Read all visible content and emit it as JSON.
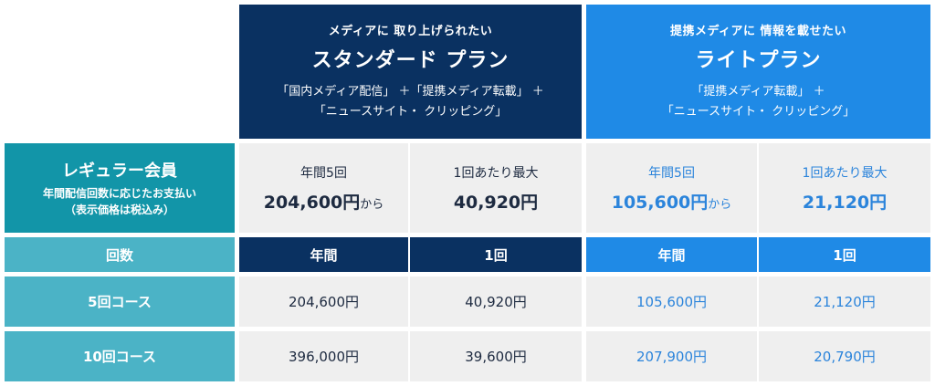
{
  "plans": {
    "standard": {
      "subtitle": "メディアに 取り上げられたい",
      "title": "スタンダード プラン",
      "description": "「国内メディア配信」 ＋「提携メディア転載」 ＋\n「ニュースサイト・ クリッピング」"
    },
    "light": {
      "subtitle": "提携メディアに 情報を載せたい",
      "title": "ライトプラン",
      "description": "「提携メディア転載」 ＋\n「ニュースサイト・ クリッピング」"
    }
  },
  "regular": {
    "title": "レギュラー会員",
    "description": "年間配信回数に応じたお支払い\n（表示価格は税込み）"
  },
  "summary": {
    "standard_year": {
      "label": "年間5回",
      "price": "204,600円",
      "suffix": "から"
    },
    "standard_once": {
      "label": "1回あたり最大",
      "price": "40,920円"
    },
    "light_year": {
      "label": "年間5回",
      "price": "105,600円",
      "suffix": "から"
    },
    "light_once": {
      "label": "1回あたり最大",
      "price": "21,120円"
    }
  },
  "headers": {
    "count": "回数",
    "standard_year": "年間",
    "standard_once": "1回",
    "light_year": "年間",
    "light_once": "1回"
  },
  "rows": [
    {
      "label": "5回コース",
      "values": [
        "204,600円",
        "40,920円",
        "105,600円",
        "21,120円"
      ]
    },
    {
      "label": "10回コース",
      "values": [
        "396,000円",
        "39,600円",
        "207,900円",
        "20,790円"
      ]
    }
  ],
  "colors": {
    "navy": "#0a3161",
    "blue": "#1f8ae6",
    "teal": "#1295a8",
    "teal_light": "#4bb3c6",
    "gray": "#efefef"
  }
}
